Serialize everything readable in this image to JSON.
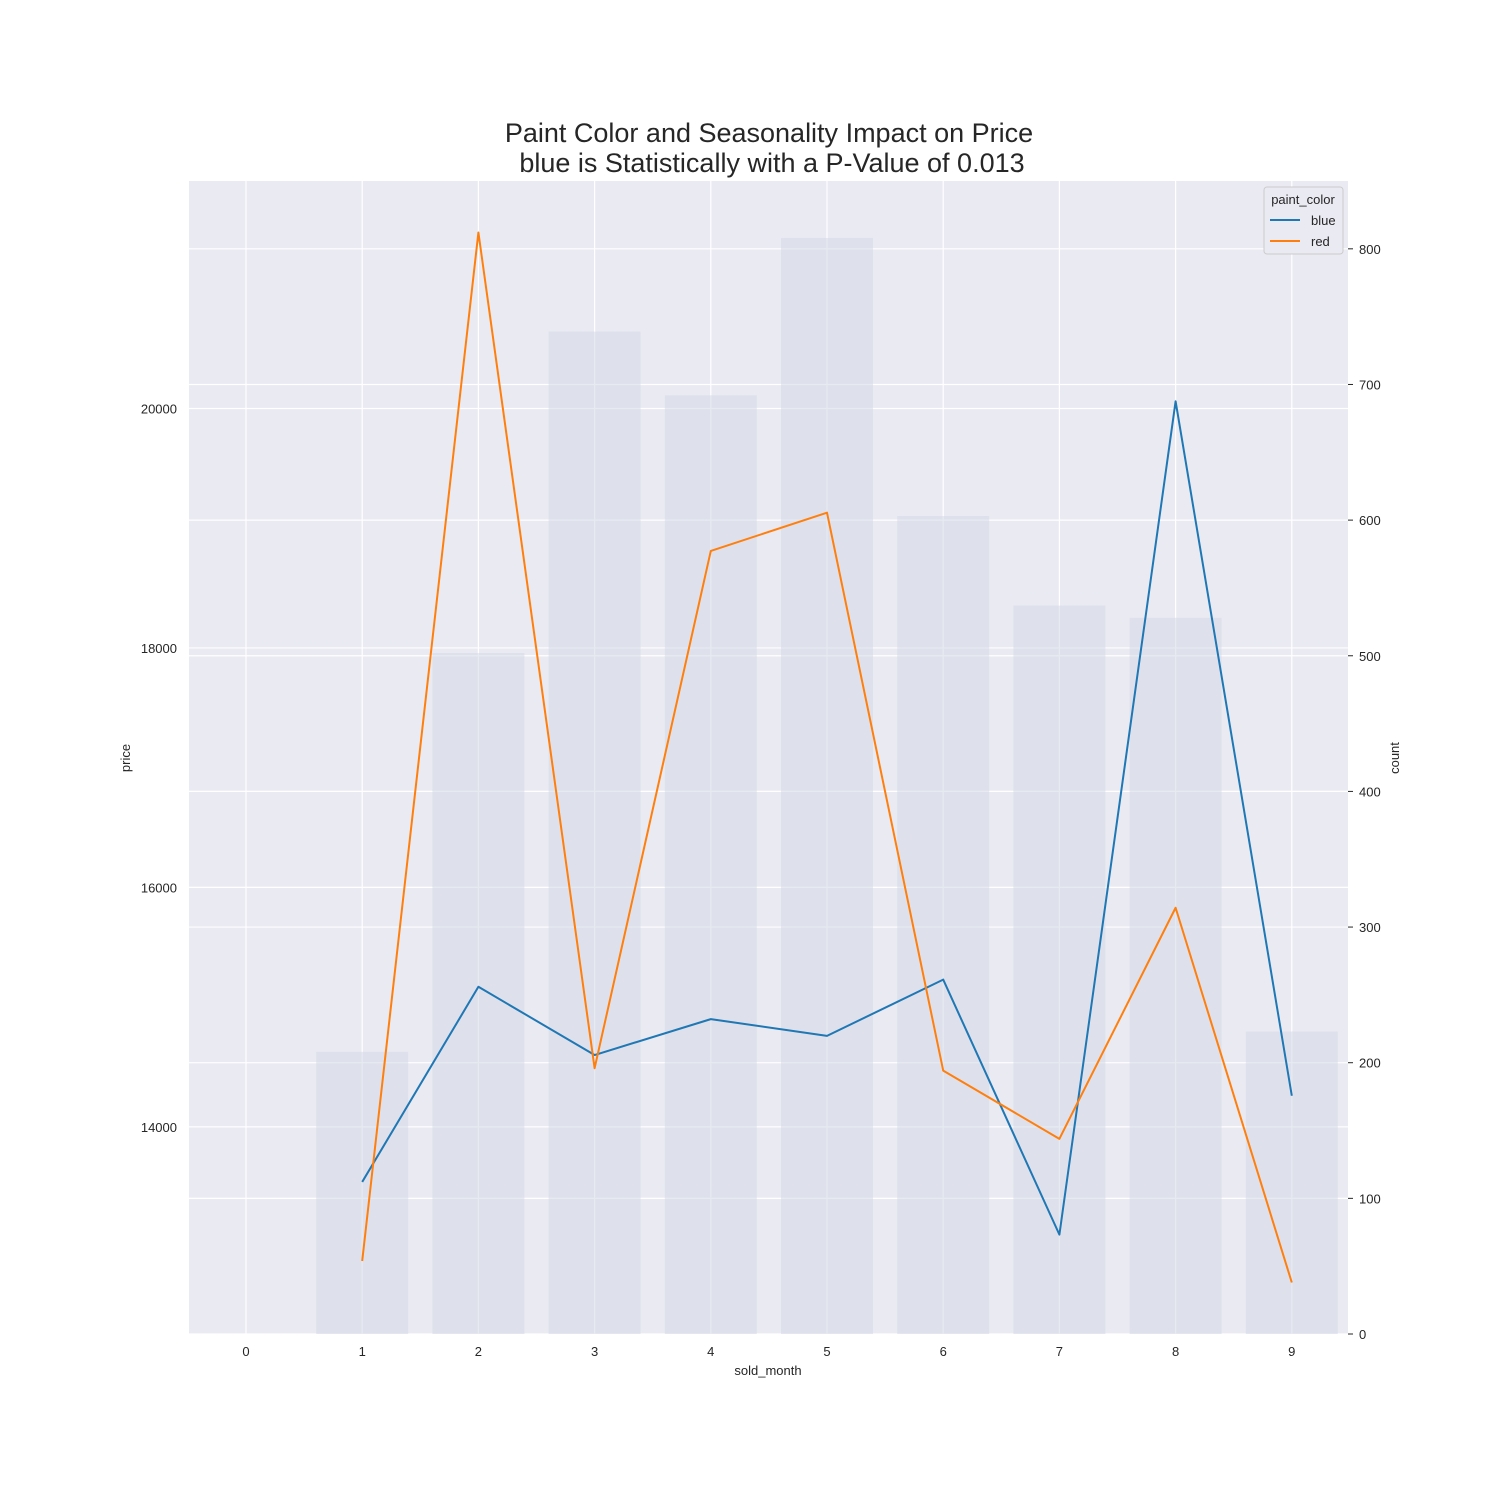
{
  "chart_data": {
    "type": "line",
    "title": "Paint Color and Seasonality Impact on Price",
    "subtitle": "blue is Statistically with a P-Value of 0.013",
    "xlabel": "sold_month",
    "ylabel": "price",
    "y2label": "count",
    "categories": [
      0,
      1,
      2,
      3,
      4,
      5,
      6,
      7,
      8,
      9
    ],
    "ylim": [
      12270,
      21900
    ],
    "y2lim": [
      0,
      850
    ],
    "yticks": [
      14000,
      16000,
      18000,
      20000
    ],
    "y2ticks": [
      0,
      100,
      200,
      300,
      400,
      500,
      600,
      700,
      800
    ],
    "grid": true,
    "legend": {
      "title": "paint_color",
      "position": "top-right"
    },
    "bars": {
      "name": "count",
      "color": "#d3d9e6",
      "x": [
        1,
        2,
        3,
        4,
        5,
        6,
        7,
        8,
        9
      ],
      "values": [
        208,
        502,
        739,
        692,
        808,
        603,
        537,
        528,
        223
      ]
    },
    "series": [
      {
        "name": "blue",
        "color": "#1f77b4",
        "x": [
          1,
          2,
          3,
          4,
          5,
          6,
          7,
          8,
          9
        ],
        "values": [
          13540,
          15170,
          14600,
          14900,
          14760,
          15230,
          13100,
          20060,
          14260
        ]
      },
      {
        "name": "red",
        "color": "#ff7f0e",
        "x": [
          1,
          2,
          3,
          4,
          5,
          6,
          7,
          8,
          9
        ],
        "values": [
          12880,
          21470,
          14490,
          18810,
          19130,
          14470,
          13900,
          15830,
          12700
        ]
      }
    ]
  }
}
